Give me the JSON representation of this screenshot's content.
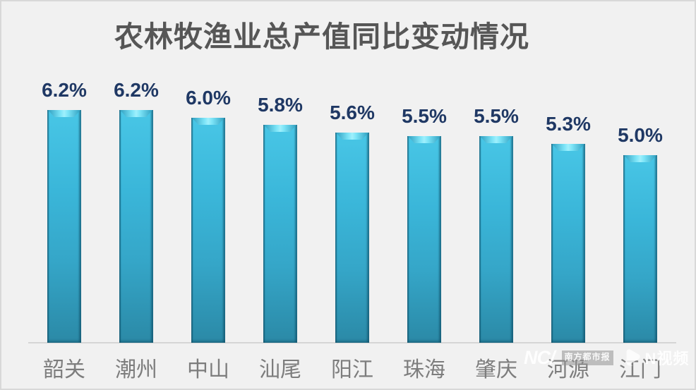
{
  "title": "农林牧渔业总产值同比变动情况",
  "chart_data": {
    "type": "bar",
    "title": "农林牧渔业总产值同比变动情况",
    "categories": [
      "韶关",
      "潮州",
      "中山",
      "汕尾",
      "阳江",
      "珠海",
      "肇庆",
      "河源",
      "江门"
    ],
    "values": [
      6.2,
      6.2,
      6.0,
      5.8,
      5.6,
      5.5,
      5.5,
      5.3,
      5.0
    ],
    "value_labels": [
      "6.2%",
      "6.2%",
      "6.0%",
      "5.8%",
      "5.6%",
      "5.5%",
      "5.5%",
      "5.3%",
      "5.0%"
    ],
    "xlabel": "",
    "ylabel": "",
    "ylim": [
      0,
      6.8
    ],
    "grid": false,
    "legend": false,
    "colors": {
      "bar": "#3ab6d9",
      "bar_dark": "#2b89a6",
      "bar_highlight": "#9ff0fc",
      "value_label": "#1f3864",
      "category_label": "#7d7d7d",
      "title": "#565656",
      "background": "#f1f1f1",
      "baseline": "#d6d6d6"
    }
  },
  "watermark": {
    "brand_logo": "NC/",
    "brand_name": "南方都市报",
    "video_brand": "N视频"
  }
}
